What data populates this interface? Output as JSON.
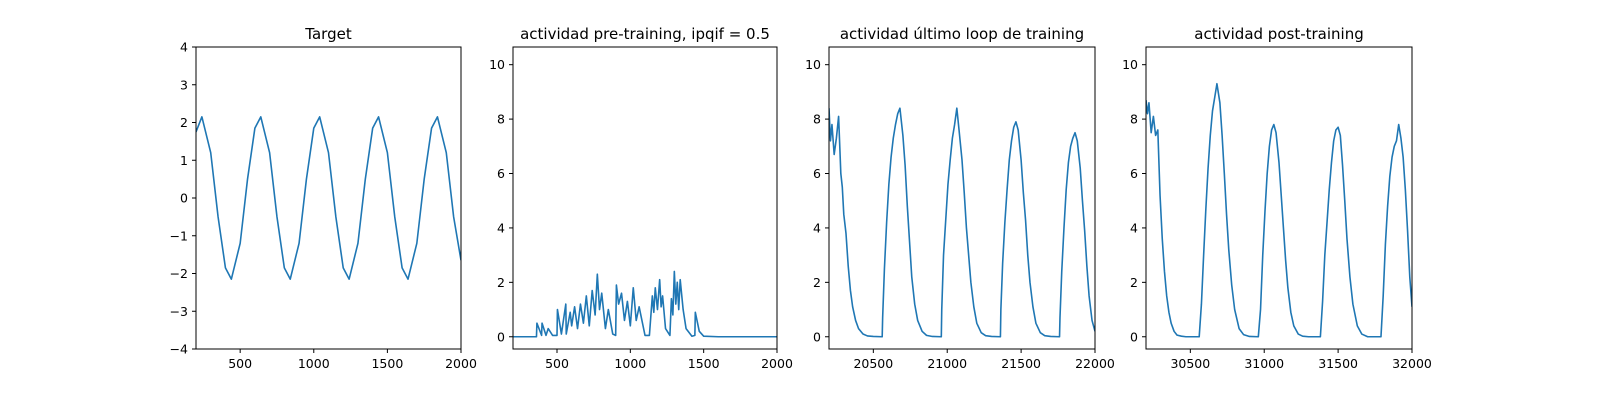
{
  "chart_data": [
    {
      "type": "line",
      "title": "Target",
      "xlabel": "",
      "ylabel": "",
      "xlim": [
        200,
        2000
      ],
      "ylim": [
        -4,
        4
      ],
      "xticks": [
        500,
        1000,
        1500,
        2000
      ],
      "yticks": [
        -4,
        -3,
        -2,
        -1,
        0,
        1,
        2,
        3,
        4
      ],
      "grid": false,
      "series": [
        {
          "x": [
            200,
            240,
            300,
            350,
            400,
            440,
            500,
            550,
            600,
            640,
            700,
            750,
            800,
            840,
            900,
            950,
            1000,
            1040,
            1100,
            1150,
            1200,
            1240,
            1300,
            1350,
            1400,
            1440,
            1500,
            1550,
            1600,
            1640,
            1700,
            1750,
            1800,
            1840,
            1900,
            1950,
            2000
          ],
          "y": [
            1.75,
            2.15,
            1.2,
            -0.5,
            -1.85,
            -2.15,
            -1.2,
            0.5,
            1.85,
            2.15,
            1.2,
            -0.5,
            -1.85,
            -2.15,
            -1.2,
            0.5,
            1.85,
            2.15,
            1.2,
            -0.5,
            -1.85,
            -2.15,
            -1.2,
            0.5,
            1.85,
            2.15,
            1.2,
            -0.5,
            -1.85,
            -2.15,
            -1.2,
            0.5,
            1.85,
            2.15,
            1.2,
            -0.5,
            -1.65
          ]
        }
      ]
    },
    {
      "type": "line",
      "title": "actividad pre-training, ipqif = 0.5",
      "xlabel": "",
      "ylabel": "",
      "xlim": [
        200,
        2000
      ],
      "ylim": [
        -0.45,
        10.65
      ],
      "xticks": [
        500,
        1000,
        1500,
        2000
      ],
      "yticks": [
        0,
        2,
        4,
        6,
        8,
        10
      ],
      "grid": false,
      "series": [
        {
          "x": [
            200,
            360,
            363,
            395,
            398,
            425,
            440,
            470,
            500,
            503,
            530,
            560,
            563,
            590,
            600,
            620,
            640,
            660,
            680,
            700,
            720,
            740,
            760,
            775,
            790,
            805,
            830,
            850,
            880,
            900,
            905,
            920,
            940,
            960,
            980,
            1000,
            1020,
            1040,
            1060,
            1100,
            1130,
            1150,
            1160,
            1170,
            1185,
            1200,
            1210,
            1220,
            1240,
            1270,
            1280,
            1290,
            1300,
            1310,
            1320,
            1330,
            1340,
            1360,
            1380,
            1420,
            1440,
            1443,
            1470,
            1500,
            1600,
            2000
          ],
          "y": [
            0,
            0,
            0.5,
            0.05,
            0.5,
            0.05,
            0.3,
            0.05,
            0.05,
            1.0,
            0.1,
            1.2,
            0.1,
            0.9,
            0.4,
            1.1,
            0.3,
            1.2,
            0.5,
            1.5,
            0.4,
            1.7,
            0.8,
            2.3,
            1.0,
            1.6,
            0.3,
            1.0,
            0.1,
            0.05,
            1.9,
            1.2,
            1.6,
            0.6,
            1.3,
            0.4,
            1.8,
            0.6,
            1.1,
            0.05,
            0.05,
            1.5,
            0.9,
            1.8,
            1.0,
            2.1,
            1.1,
            1.5,
            0.3,
            0.05,
            1.4,
            0.8,
            2.4,
            1.2,
            2.0,
            1.0,
            2.1,
            1.0,
            0.3,
            0.02,
            0.05,
            0.9,
            0.2,
            0.02,
            0,
            0
          ]
        }
      ]
    },
    {
      "type": "line",
      "title": "actividad último loop de training",
      "xlabel": "",
      "ylabel": "",
      "xlim": [
        20200,
        22000
      ],
      "ylim": [
        -0.45,
        10.65
      ],
      "xticks": [
        20500,
        21000,
        21500,
        22000
      ],
      "yticks": [
        0,
        2,
        4,
        6,
        8,
        10
      ],
      "grid": false,
      "series": [
        {
          "x": [
            20200,
            20210,
            20220,
            20235,
            20250,
            20265,
            20280,
            20290,
            20300,
            20315,
            20330,
            20345,
            20360,
            20380,
            20400,
            20430,
            20460,
            20500,
            20560,
            20563,
            20575,
            20590,
            20605,
            20620,
            20635,
            20650,
            20665,
            20680,
            20700,
            20715,
            20730,
            20745,
            20760,
            20780,
            20800,
            20830,
            20860,
            20900,
            20960,
            20963,
            20975,
            20990,
            21005,
            21020,
            21035,
            21050,
            21065,
            21080,
            21100,
            21115,
            21130,
            21145,
            21160,
            21180,
            21200,
            21230,
            21260,
            21300,
            21360,
            21363,
            21375,
            21390,
            21405,
            21420,
            21435,
            21450,
            21465,
            21480,
            21500,
            21515,
            21530,
            21545,
            21560,
            21580,
            21600,
            21630,
            21660,
            21700,
            21760,
            21763,
            21775,
            21790,
            21805,
            21820,
            21835,
            21850,
            21865,
            21880,
            21900,
            21915,
            21930,
            21945,
            21960,
            21980,
            22000
          ],
          "y": [
            8.4,
            7.2,
            7.8,
            6.7,
            7.3,
            8.1,
            6.0,
            5.5,
            4.5,
            3.8,
            2.6,
            1.7,
            1.1,
            0.6,
            0.3,
            0.1,
            0.03,
            0.01,
            0.0,
            0.7,
            2.5,
            4.2,
            5.6,
            6.6,
            7.3,
            7.8,
            8.2,
            8.4,
            7.4,
            6.3,
            4.8,
            3.5,
            2.2,
            1.2,
            0.6,
            0.2,
            0.05,
            0.01,
            0.0,
            1.0,
            3.0,
            4.3,
            5.6,
            6.5,
            7.3,
            7.8,
            8.4,
            7.6,
            6.5,
            5.3,
            4.0,
            3.0,
            2.0,
            1.1,
            0.5,
            0.15,
            0.04,
            0.01,
            0.0,
            1.0,
            2.7,
            4.2,
            5.4,
            6.5,
            7.2,
            7.7,
            7.9,
            7.6,
            6.5,
            5.3,
            4.3,
            3.0,
            2.0,
            1.1,
            0.5,
            0.15,
            0.04,
            0.01,
            0.0,
            0.7,
            2.4,
            4.0,
            5.4,
            6.4,
            7.0,
            7.3,
            7.5,
            7.2,
            6.2,
            5.0,
            3.9,
            2.6,
            1.5,
            0.6,
            0.2
          ]
        }
      ]
    },
    {
      "type": "line",
      "title": "actividad post-training",
      "xlabel": "",
      "ylabel": "",
      "xlim": [
        30200,
        32000
      ],
      "ylim": [
        -0.45,
        10.65
      ],
      "xticks": [
        30500,
        31000,
        31500,
        32000
      ],
      "yticks": [
        0,
        2,
        4,
        6,
        8,
        10
      ],
      "grid": false,
      "series": [
        {
          "x": [
            30200,
            30210,
            30220,
            30235,
            30250,
            30265,
            30280,
            30295,
            30310,
            30325,
            30340,
            30355,
            30370,
            30390,
            30410,
            30440,
            30470,
            30500,
            30560,
            30575,
            30590,
            30605,
            30620,
            30635,
            30650,
            30665,
            30680,
            30700,
            30715,
            30730,
            30745,
            30760,
            30780,
            30800,
            30830,
            30860,
            30900,
            30960,
            30975,
            30990,
            31005,
            31020,
            31035,
            31050,
            31065,
            31080,
            31100,
            31115,
            31130,
            31145,
            31160,
            31180,
            31200,
            31230,
            31260,
            31300,
            31380,
            31395,
            31410,
            31425,
            31440,
            31455,
            31470,
            31485,
            31500,
            31515,
            31530,
            31545,
            31560,
            31580,
            31600,
            31630,
            31660,
            31700,
            31790,
            31805,
            31820,
            31835,
            31850,
            31865,
            31880,
            31895,
            31910,
            31925,
            31940,
            31955,
            31970,
            31985,
            32000
          ],
          "y": [
            8.7,
            8.2,
            8.6,
            7.5,
            8.1,
            7.4,
            7.6,
            5.2,
            3.6,
            2.4,
            1.5,
            0.9,
            0.5,
            0.2,
            0.06,
            0.02,
            0.0,
            0.0,
            0.0,
            1.2,
            3.0,
            4.7,
            6.2,
            7.4,
            8.3,
            8.8,
            9.3,
            8.6,
            7.4,
            6.0,
            4.5,
            3.2,
            1.9,
            1.0,
            0.3,
            0.08,
            0.01,
            0.0,
            1.0,
            3.0,
            4.6,
            6.0,
            7.0,
            7.6,
            7.8,
            7.5,
            6.4,
            5.2,
            4.0,
            2.8,
            1.8,
            0.9,
            0.4,
            0.1,
            0.02,
            0.0,
            0.0,
            1.3,
            3.0,
            4.2,
            5.4,
            6.4,
            7.2,
            7.6,
            7.7,
            7.4,
            6.3,
            5.0,
            3.6,
            2.2,
            1.2,
            0.4,
            0.1,
            0.0,
            0.0,
            1.5,
            3.4,
            4.8,
            5.9,
            6.6,
            7.0,
            7.2,
            7.8,
            7.3,
            6.6,
            5.4,
            3.9,
            2.2,
            1.1
          ]
        }
      ]
    }
  ],
  "colors": {
    "line": "#1f77b4",
    "axis": "#000000",
    "background": "#ffffff"
  }
}
